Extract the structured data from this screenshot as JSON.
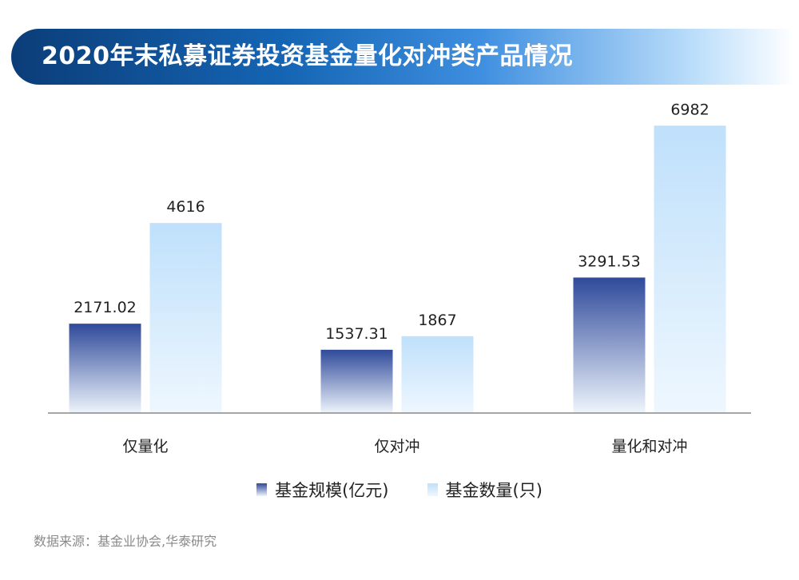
{
  "title": "2020年末私募证券投资基金量化对冲类产品情况",
  "source": "数据来源：基金业协会,华泰研究",
  "colors": {
    "series1_top": "#2f4a9a",
    "series1_bottom": "#eef4fc",
    "series2_top": "#bfe0fb",
    "series2_bottom": "#eef7fe",
    "axis": "#888888"
  },
  "chart_data": {
    "type": "bar",
    "title": "",
    "xlabel": "",
    "ylabel": "",
    "categories": [
      "仅量化",
      "仅对冲",
      "量化和对冲"
    ],
    "series": [
      {
        "name": "基金规模(亿元)",
        "values": [
          2171.02,
          1537.31,
          3291.53
        ],
        "labels": [
          "2171.02",
          "1537.31",
          "3291.53"
        ]
      },
      {
        "name": "基金数量(只)",
        "values": [
          4616,
          1867,
          6982
        ],
        "labels": [
          "4616",
          "1867",
          "6982"
        ]
      }
    ],
    "ylim": [
      0,
      7900
    ],
    "grid": false,
    "legend_position": "bottom"
  }
}
